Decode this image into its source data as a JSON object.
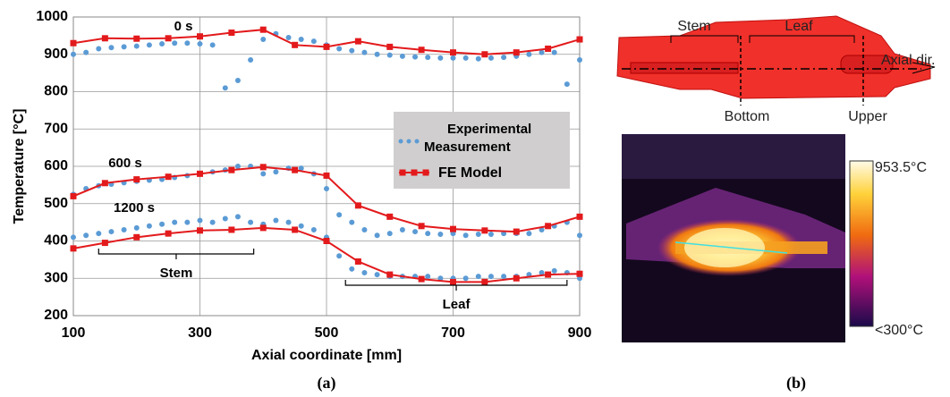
{
  "chart_data": {
    "type": "line",
    "xlabel": "Axial coordinate [mm]",
    "ylabel": "Temperature [°C]",
    "xlim": [
      100,
      900
    ],
    "xticks": [
      100,
      300,
      500,
      700,
      900
    ],
    "ylim": [
      200,
      1000
    ],
    "yticks": [
      200,
      300,
      400,
      500,
      600,
      700,
      800,
      900,
      1000
    ],
    "grid": true,
    "legend": [
      {
        "name": "Experimental Measurement",
        "color": "#5b9bd5"
      },
      {
        "name": "FE Model",
        "color": "#e31a1c"
      }
    ],
    "fe_x": [
      100,
      150,
      200,
      250,
      300,
      350,
      400,
      450,
      500,
      550,
      600,
      650,
      700,
      750,
      800,
      850,
      900
    ],
    "exp_x": [
      100,
      120,
      140,
      160,
      180,
      200,
      220,
      240,
      260,
      280,
      300,
      320,
      340,
      360,
      380,
      400,
      420,
      440,
      460,
      480,
      500,
      520,
      540,
      560,
      580,
      600,
      620,
      640,
      660,
      680,
      700,
      720,
      740,
      760,
      780,
      800,
      820,
      840,
      860,
      880,
      900
    ],
    "curves": [
      {
        "label": "0 s",
        "fe": [
          930,
          943,
          942,
          943,
          948,
          958,
          966,
          925,
          920,
          935,
          920,
          912,
          905,
          900,
          905,
          915,
          940
        ],
        "exp": [
          900,
          905,
          915,
          918,
          920,
          922,
          925,
          928,
          930,
          930,
          928,
          925,
          810,
          830,
          885,
          940,
          955,
          945,
          940,
          935,
          925,
          915,
          910,
          905,
          900,
          898,
          895,
          893,
          892,
          890,
          890,
          890,
          888,
          890,
          892,
          895,
          900,
          905,
          905,
          820,
          885
        ]
      },
      {
        "label": "600 s",
        "fe": [
          520,
          555,
          565,
          572,
          580,
          590,
          598,
          590,
          575,
          495,
          465,
          440,
          432,
          428,
          425,
          440,
          465
        ],
        "exp": [
          525,
          540,
          548,
          552,
          556,
          560,
          563,
          565,
          570,
          575,
          580,
          585,
          590,
          600,
          600,
          580,
          585,
          595,
          595,
          580,
          540,
          470,
          450,
          430,
          415,
          420,
          430,
          425,
          420,
          418,
          420,
          415,
          418,
          418,
          420,
          420,
          420,
          430,
          440,
          450,
          415
        ]
      },
      {
        "label": "1200 s",
        "fe": [
          380,
          395,
          410,
          420,
          428,
          430,
          435,
          430,
          400,
          345,
          310,
          298,
          290,
          290,
          300,
          310,
          312
        ],
        "exp": [
          410,
          415,
          420,
          425,
          430,
          435,
          440,
          445,
          450,
          450,
          455,
          450,
          460,
          465,
          450,
          445,
          455,
          450,
          440,
          430,
          410,
          360,
          325,
          315,
          310,
          305,
          305,
          305,
          305,
          300,
          300,
          300,
          305,
          305,
          305,
          305,
          310,
          315,
          320,
          315,
          300
        ]
      }
    ],
    "annotations": [
      {
        "text": "Stem",
        "x": [
          140,
          385
        ]
      },
      {
        "text": "Leaf",
        "x": [
          530,
          880
        ]
      }
    ],
    "panel_label": "(a)"
  },
  "figure_b": {
    "panel_label": "(b)",
    "stem": "Stem",
    "leaf": "Leaf",
    "axial": "Axial dir.",
    "bottom": "Bottom",
    "upper": "Upper",
    "cb_max": "953.5°C",
    "cb_min": "<300°C"
  }
}
